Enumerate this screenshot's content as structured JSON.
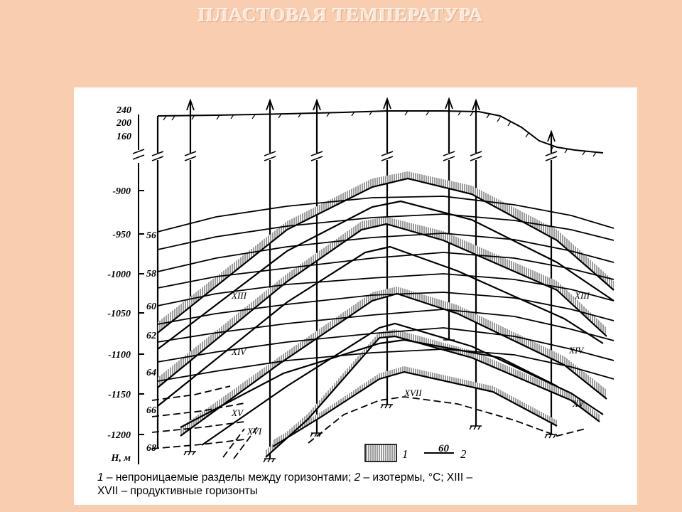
{
  "page": {
    "title": "ПЛАСТОВАЯ  ТЕМПЕРАТУРА",
    "background": "#f9ceb0"
  },
  "figure": {
    "elevation_labels": [
      "240",
      "200",
      "160"
    ],
    "depth_axis": {
      "unit_label": "H, м",
      "ticks": [
        "-900",
        "-950",
        "-1000",
        "-1050",
        "-1100",
        "-1150",
        "-1200"
      ]
    },
    "isotherm_labels": [
      "56",
      "58",
      "60",
      "62",
      "64",
      "66",
      "68"
    ],
    "horizon_labels": {
      "XIII": "XIII",
      "XIV": "XIV",
      "XV": "XV",
      "XVI": "XVI",
      "XVII": "XVII"
    },
    "legend": {
      "item1_number": "1",
      "item2_value": "60",
      "item2_number": "2"
    },
    "caption": {
      "n1": "1",
      "part1": " – непроницаемые разделы между горизонтами; ",
      "n2": "2",
      "part2": " – изотермы, °С; XIII –",
      "line2": "XVII – продуктивные горизонты"
    }
  }
}
